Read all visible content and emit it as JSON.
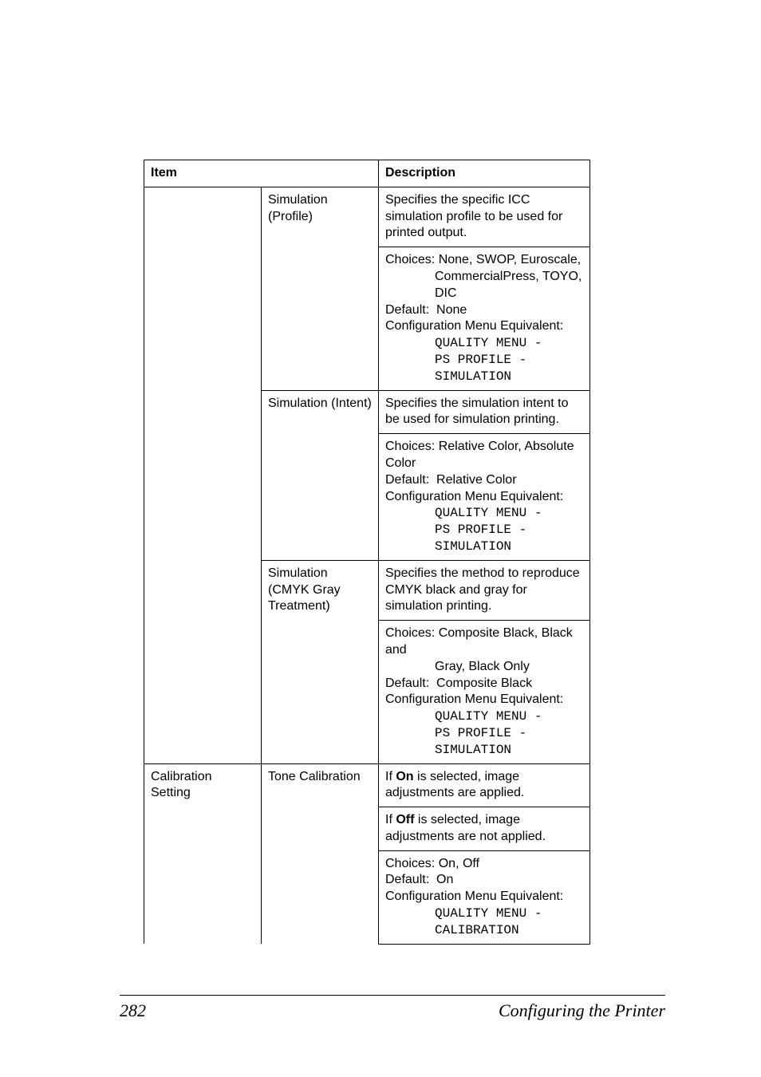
{
  "header": {
    "item": "Item",
    "description": "Description"
  },
  "rows": [
    {
      "item": "",
      "sub": "Simulation (Profile)",
      "desc_intro": "Specifies the specific ICC simulation profile to be used for printed output.",
      "choices_label": "Choices:",
      "choices_first": "None, SWOP, Euroscale,",
      "choices_cont": "CommercialPress, TOYO, DIC",
      "default_label": "Default:",
      "default_value": "None",
      "cfg_label": "Configuration Menu Equivalent:",
      "mono1": "QUALITY MENU -",
      "mono2": "PS PROFILE -",
      "mono3": "SIMULATION"
    },
    {
      "item": "",
      "sub": "Simulation (Intent)",
      "desc_intro": "Specifies the simulation intent to be used for simulation printing.",
      "choices_label": "Choices:",
      "choices_first": "Relative Color, Absolute Color",
      "choices_cont": "",
      "default_label": "Default:",
      "default_value": "Relative Color",
      "cfg_label": "Configuration Menu Equivalent:",
      "mono1": "QUALITY MENU -",
      "mono2": "PS PROFILE -",
      "mono3": "SIMULATION"
    },
    {
      "item": "",
      "sub": "Simulation (CMYK Gray Treatment)",
      "desc_intro": "Specifies the method to reproduce CMYK black and gray for simulation printing.",
      "choices_label": "Choices:",
      "choices_first": "Composite Black, Black and",
      "choices_cont": "Gray, Black Only",
      "default_label": "Default:",
      "default_value": "Composite Black",
      "cfg_label": "Configuration Menu Equivalent:",
      "mono1": "QUALITY MENU -",
      "mono2": "PS PROFILE -",
      "mono3": "SIMULATION"
    },
    {
      "item": "Calibration Setting",
      "sub": "Tone Calibration",
      "desc_intro_a": "If ",
      "desc_intro_bold_a": "On",
      "desc_intro_b": " is selected, image adjustments are applied.",
      "desc_intro_c": "If ",
      "desc_intro_bold_b": "Off",
      "desc_intro_d": " is selected, image adjustments are not applied.",
      "choices_label": "Choices:",
      "choices_first": "On, Off",
      "choices_cont": "",
      "default_label": "Default:",
      "default_value": "On",
      "cfg_label": "Configuration Menu Equivalent:",
      "mono1": "QUALITY MENU -",
      "mono2": "CALIBRATION",
      "mono3": ""
    }
  ],
  "footer": {
    "page": "282",
    "title": "Configuring the Printer"
  }
}
